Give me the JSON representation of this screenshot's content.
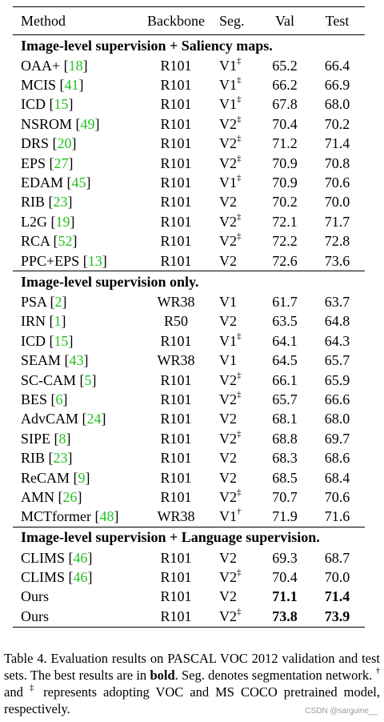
{
  "headers": {
    "method": "Method",
    "backbone": "Backbone",
    "seg": "Seg.",
    "val": "Val",
    "test": "Test"
  },
  "sections": [
    {
      "title": "Image-level supervision + Saliency maps.",
      "rows": [
        {
          "method": "OAA+",
          "ref": "18",
          "backbone": "R101",
          "seg": "V1",
          "sup": "‡",
          "val": "65.2",
          "test": "66.4"
        },
        {
          "method": "MCIS",
          "ref": "41",
          "backbone": "R101",
          "seg": "V1",
          "sup": "‡",
          "val": "66.2",
          "test": "66.9"
        },
        {
          "method": "ICD",
          "ref": "15",
          "backbone": "R101",
          "seg": "V1",
          "sup": "‡",
          "val": "67.8",
          "test": "68.0"
        },
        {
          "method": "NSROM",
          "ref": "49",
          "backbone": "R101",
          "seg": "V2",
          "sup": "‡",
          "val": "70.4",
          "test": "70.2"
        },
        {
          "method": "DRS",
          "ref": "20",
          "backbone": "R101",
          "seg": "V2",
          "sup": "‡",
          "val": "71.2",
          "test": "71.4"
        },
        {
          "method": "EPS",
          "ref": "27",
          "backbone": "R101",
          "seg": "V2",
          "sup": "‡",
          "val": "70.9",
          "test": "70.8"
        },
        {
          "method": "EDAM",
          "ref": "45",
          "backbone": "R101",
          "seg": "V1",
          "sup": "‡",
          "val": "70.9",
          "test": "70.6"
        },
        {
          "method": "RIB",
          "ref": "23",
          "backbone": "R101",
          "seg": "V2",
          "sup": "",
          "val": "70.2",
          "test": "70.0"
        },
        {
          "method": "L2G",
          "ref": "19",
          "backbone": "R101",
          "seg": "V2",
          "sup": "‡",
          "val": "72.1",
          "test": "71.7"
        },
        {
          "method": "RCA",
          "ref": "52",
          "backbone": "R101",
          "seg": "V2",
          "sup": "‡",
          "val": "72.2",
          "test": "72.8"
        },
        {
          "method": "PPC+EPS",
          "ref": "13",
          "backbone": "R101",
          "seg": "V2",
          "sup": "",
          "val": "72.6",
          "test": "73.6"
        }
      ]
    },
    {
      "title": "Image-level supervision only.",
      "rows": [
        {
          "method": "PSA",
          "ref": "2",
          "backbone": "WR38",
          "seg": "V1",
          "sup": "",
          "val": "61.7",
          "test": "63.7"
        },
        {
          "method": "IRN",
          "ref": "1",
          "backbone": "R50",
          "seg": "V2",
          "sup": "",
          "val": "63.5",
          "test": "64.8"
        },
        {
          "method": "ICD",
          "ref": "15",
          "backbone": "R101",
          "seg": "V1",
          "sup": "‡",
          "val": "64.1",
          "test": "64.3"
        },
        {
          "method": "SEAM",
          "ref": "43",
          "backbone": "WR38",
          "seg": "V1",
          "sup": "",
          "val": "64.5",
          "test": "65.7"
        },
        {
          "method": "SC-CAM",
          "ref": "5",
          "backbone": "R101",
          "seg": "V2",
          "sup": "‡",
          "val": "66.1",
          "test": "65.9"
        },
        {
          "method": "BES",
          "ref": "6",
          "backbone": "R101",
          "seg": "V2",
          "sup": "‡",
          "val": "65.7",
          "test": "66.6"
        },
        {
          "method": "AdvCAM",
          "ref": "24",
          "backbone": "R101",
          "seg": "V2",
          "sup": "",
          "val": "68.1",
          "test": "68.0"
        },
        {
          "method": "SIPE",
          "ref": "8",
          "backbone": "R101",
          "seg": "V2",
          "sup": "‡",
          "val": "68.8",
          "test": "69.7"
        },
        {
          "method": "RIB",
          "ref": "23",
          "backbone": "R101",
          "seg": "V2",
          "sup": "",
          "val": "68.3",
          "test": "68.6"
        },
        {
          "method": "ReCAM",
          "ref": "9",
          "backbone": "R101",
          "seg": "V2",
          "sup": "",
          "val": "68.5",
          "test": "68.4"
        },
        {
          "method": "AMN",
          "ref": "26",
          "backbone": "R101",
          "seg": "V2",
          "sup": "‡",
          "val": "70.7",
          "test": "70.6"
        },
        {
          "method": "MCTformer",
          "ref": "48",
          "backbone": "WR38",
          "seg": "V1",
          "sup": "†",
          "val": "71.9",
          "test": "71.6"
        }
      ]
    },
    {
      "title": "Image-level supervision + Language supervision.",
      "rows": [
        {
          "method": "CLIMS",
          "ref": "46",
          "backbone": "R101",
          "seg": "V2",
          "sup": "",
          "val": "69.3",
          "test": "68.7"
        },
        {
          "method": "CLIMS",
          "ref": "46",
          "backbone": "R101",
          "seg": "V2",
          "sup": "‡",
          "val": "70.4",
          "test": "70.0"
        },
        {
          "method": "Ours",
          "ref": "",
          "backbone": "R101",
          "seg": "V2",
          "sup": "",
          "val": "71.1",
          "test": "71.4",
          "bold": true
        },
        {
          "method": "Ours",
          "ref": "",
          "backbone": "R101",
          "seg": "V2",
          "sup": "‡",
          "val": "73.8",
          "test": "73.9",
          "bold": true
        }
      ]
    }
  ],
  "caption": {
    "p1": "Table 4. Evaluation results on PASCAL VOC 2012 validation and test sets. The best results are in ",
    "bold_word": "bold",
    "p2": ". Seg. denotes segmentation network. ",
    "dagger": "†",
    "p3": " and ",
    "ddagger": "‡",
    "p4": " represents adopting VOC and MS COCO pretrained model, respectively."
  },
  "watermark": "CSDN @sarguine__"
}
